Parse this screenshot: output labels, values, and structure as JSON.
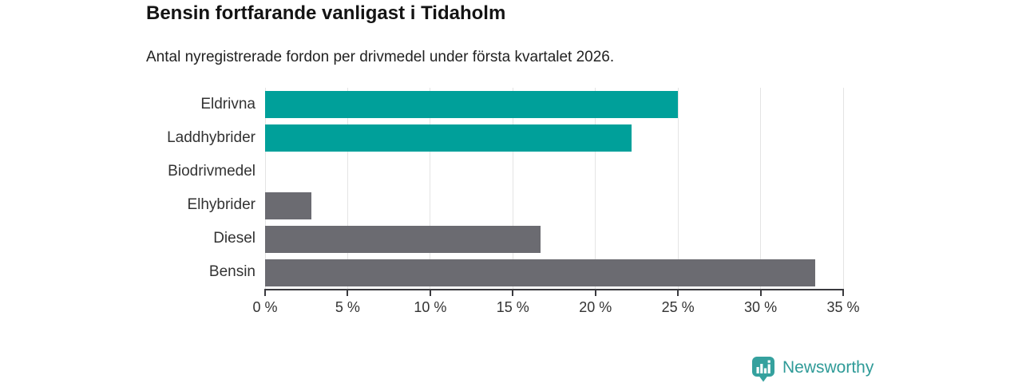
{
  "header": {
    "title": "Bensin fortfarande vanligast i Tidaholm",
    "subtitle": "Antal nyregistrerade fordon per drivmedel under första kvartalet 2026."
  },
  "chart_data": {
    "type": "bar",
    "orientation": "horizontal",
    "title": "Bensin fortfarande vanligast i Tidaholm",
    "subtitle": "Antal nyregistrerade fordon per drivmedel under första kvartalet 2026.",
    "categories": [
      "Eldrivna",
      "Laddhybrider",
      "Biodrivmedel",
      "Elhybrider",
      "Diesel",
      "Bensin"
    ],
    "values": [
      25.0,
      22.2,
      0,
      2.8,
      16.7,
      33.3
    ],
    "unit": "%",
    "xlim": [
      0,
      35
    ],
    "x_ticks": [
      0,
      5,
      10,
      15,
      20,
      25,
      30,
      35
    ],
    "x_tick_labels": [
      "0 %",
      "5 %",
      "10 %",
      "15 %",
      "20 %",
      "25 %",
      "30 %",
      "35 %"
    ],
    "grid": true,
    "legend": false,
    "bar_colors": [
      "#00a09a",
      "#00a09a",
      "#6b6b71",
      "#6b6b71",
      "#6b6b71",
      "#6b6b71"
    ]
  },
  "colors": {
    "highlight_bar": "#00a09a",
    "default_bar": "#6b6b71",
    "axis": "#3a3a3e",
    "gridline": "#e4e4e4",
    "text": "#333333",
    "brand": "#2f9b98"
  },
  "footer": {
    "brand_name": "Newsworthy",
    "logo_icon": "newsworthy-bar-chart-bubble-icon"
  }
}
